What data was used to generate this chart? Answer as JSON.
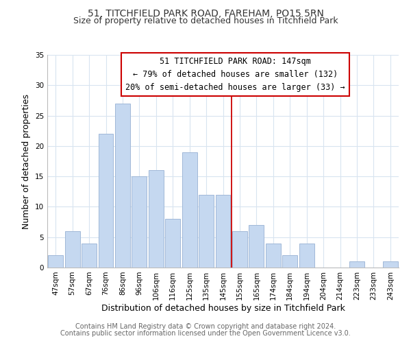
{
  "title": "51, TITCHFIELD PARK ROAD, FAREHAM, PO15 5RN",
  "subtitle": "Size of property relative to detached houses in Titchfield Park",
  "xlabel": "Distribution of detached houses by size in Titchfield Park",
  "ylabel": "Number of detached properties",
  "bar_labels": [
    "47sqm",
    "57sqm",
    "67sqm",
    "76sqm",
    "86sqm",
    "96sqm",
    "106sqm",
    "116sqm",
    "125sqm",
    "135sqm",
    "145sqm",
    "155sqm",
    "165sqm",
    "174sqm",
    "184sqm",
    "194sqm",
    "204sqm",
    "214sqm",
    "223sqm",
    "233sqm",
    "243sqm"
  ],
  "bar_values": [
    2,
    6,
    4,
    22,
    27,
    15,
    16,
    8,
    19,
    12,
    12,
    6,
    7,
    4,
    2,
    4,
    0,
    0,
    1,
    0,
    1
  ],
  "bar_color": "#c5d8f0",
  "bar_edge_color": "#a0b8d8",
  "vline_x": 10.5,
  "vline_color": "#cc0000",
  "ylim": [
    0,
    35
  ],
  "yticks": [
    0,
    5,
    10,
    15,
    20,
    25,
    30,
    35
  ],
  "annotation_title": "51 TITCHFIELD PARK ROAD: 147sqm",
  "annotation_line1": "← 79% of detached houses are smaller (132)",
  "annotation_line2": "20% of semi-detached houses are larger (33) →",
  "footer_line1": "Contains HM Land Registry data © Crown copyright and database right 2024.",
  "footer_line2": "Contains public sector information licensed under the Open Government Licence v3.0.",
  "background_color": "#ffffff",
  "grid_color": "#d8e4f0",
  "title_fontsize": 10,
  "subtitle_fontsize": 9,
  "axis_label_fontsize": 9,
  "tick_fontsize": 7.5,
  "annotation_fontsize": 8.5,
  "footer_fontsize": 7
}
